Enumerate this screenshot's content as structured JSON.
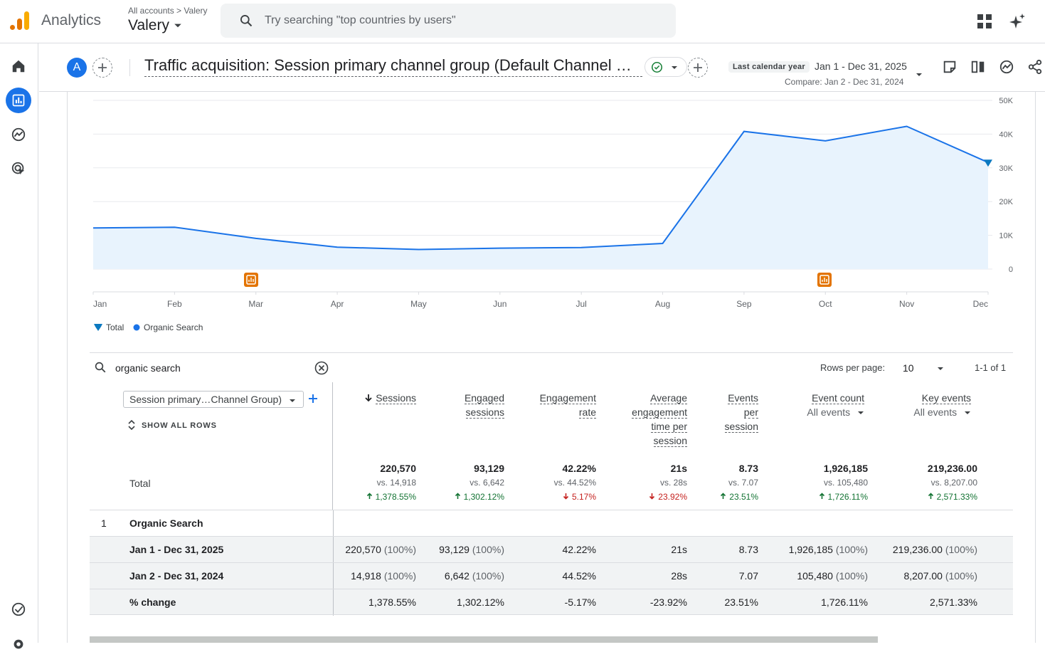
{
  "app": {
    "name": "Analytics",
    "breadcrumb_all": "All accounts",
    "breadcrumb_sep": ">",
    "breadcrumb_account": "Valery",
    "property": "Valery"
  },
  "search": {
    "placeholder": "Try searching \"top countries by users\""
  },
  "header": {
    "avatar_letter": "A",
    "title": "Traffic acquisition: Session primary channel group (Default Channel Group)",
    "date_chip": "Last calendar year",
    "date_range": "Jan 1 - Dec 31, 2025",
    "compare": "Compare: Jan 2 - Dec 31, 2024"
  },
  "chart_data": {
    "type": "area",
    "x": [
      "Jan",
      "Feb",
      "Mar",
      "Apr",
      "May",
      "Jun",
      "Jul",
      "Aug",
      "Sep",
      "Oct",
      "Nov",
      "Dec"
    ],
    "series": [
      {
        "name": "Organic Search",
        "values": [
          12200,
          12400,
          9100,
          6500,
          5800,
          6200,
          6400,
          7600,
          40800,
          38000,
          42300,
          31600
        ]
      }
    ],
    "yticks": [
      "50K",
      "40K",
      "30K",
      "20K",
      "10K",
      "0"
    ],
    "ylim": [
      0,
      50000
    ],
    "legend": [
      "Total",
      "Organic Search"
    ],
    "legend_placement": "bottom-left",
    "colors": {
      "line": "#1a73e8",
      "fill": "#e8f3fd",
      "total": "#0b79c0"
    }
  },
  "table": {
    "search_value": "organic search",
    "rows_per_page_label": "Rows per page:",
    "rows_per_page": "10",
    "pager": "1-1 of 1",
    "dimension": "Session primary…Channel Group)",
    "show_all": "SHOW ALL ROWS",
    "total_label": "Total",
    "headers": [
      {
        "l1": "Sessions"
      },
      {
        "l1": "Engaged",
        "l2": "sessions"
      },
      {
        "l1": "Engagement",
        "l2": "rate"
      },
      {
        "l1": "Average",
        "l2": "engagement",
        "l3": "time per",
        "l4": "session"
      },
      {
        "l1": "Events",
        "l2": "per",
        "l3": "session"
      },
      {
        "l1": "Event count",
        "sub": "All events"
      },
      {
        "l1": "Key events",
        "sub": "All events"
      }
    ],
    "totals": [
      {
        "v": "220,570",
        "vs": "vs. 14,918",
        "chg": "1,378.55%"
      },
      {
        "v": "93,129",
        "vs": "vs. 6,642",
        "chg": "1,302.12%"
      },
      {
        "v": "42.22%",
        "vs": "vs. 44.52%",
        "chg": "5.17%"
      },
      {
        "v": "21s",
        "vs": "vs. 28s",
        "chg": "23.92%"
      },
      {
        "v": "8.73",
        "vs": "vs. 7.07",
        "chg": "23.51%"
      },
      {
        "v": "1,926,185",
        "vs": "vs. 105,480",
        "chg": "1,726.11%"
      },
      {
        "v": "219,236.00",
        "vs": "vs. 8,207.00",
        "chg": "2,571.33%"
      }
    ],
    "row1": {
      "index": "1",
      "label": "Organic Search"
    },
    "rows": [
      {
        "label": "Jan 1 - Dec 31, 2025",
        "cells": [
          [
            "220,570",
            "(100%)"
          ],
          [
            "93,129",
            "(100%)"
          ],
          [
            "42.22%",
            ""
          ],
          [
            "21s",
            ""
          ],
          [
            "8.73",
            ""
          ],
          [
            "1,926,185",
            "(100%)"
          ],
          [
            "219,236.00",
            "(100%)"
          ]
        ]
      },
      {
        "label": "Jan 2 - Dec 31, 2024",
        "cells": [
          [
            "14,918",
            "(100%)"
          ],
          [
            "6,642",
            "(100%)"
          ],
          [
            "44.52%",
            ""
          ],
          [
            "28s",
            ""
          ],
          [
            "7.07",
            ""
          ],
          [
            "105,480",
            "(100%)"
          ],
          [
            "8,207.00",
            "(100%)"
          ]
        ]
      },
      {
        "label": "% change",
        "cells": [
          [
            "1,378.55%",
            ""
          ],
          [
            "1,302.12%",
            ""
          ],
          [
            "-5.17%",
            ""
          ],
          [
            "-23.92%",
            ""
          ],
          [
            "23.51%",
            ""
          ],
          [
            "1,726.11%",
            ""
          ],
          [
            "2,571.33%",
            ""
          ]
        ]
      }
    ]
  }
}
